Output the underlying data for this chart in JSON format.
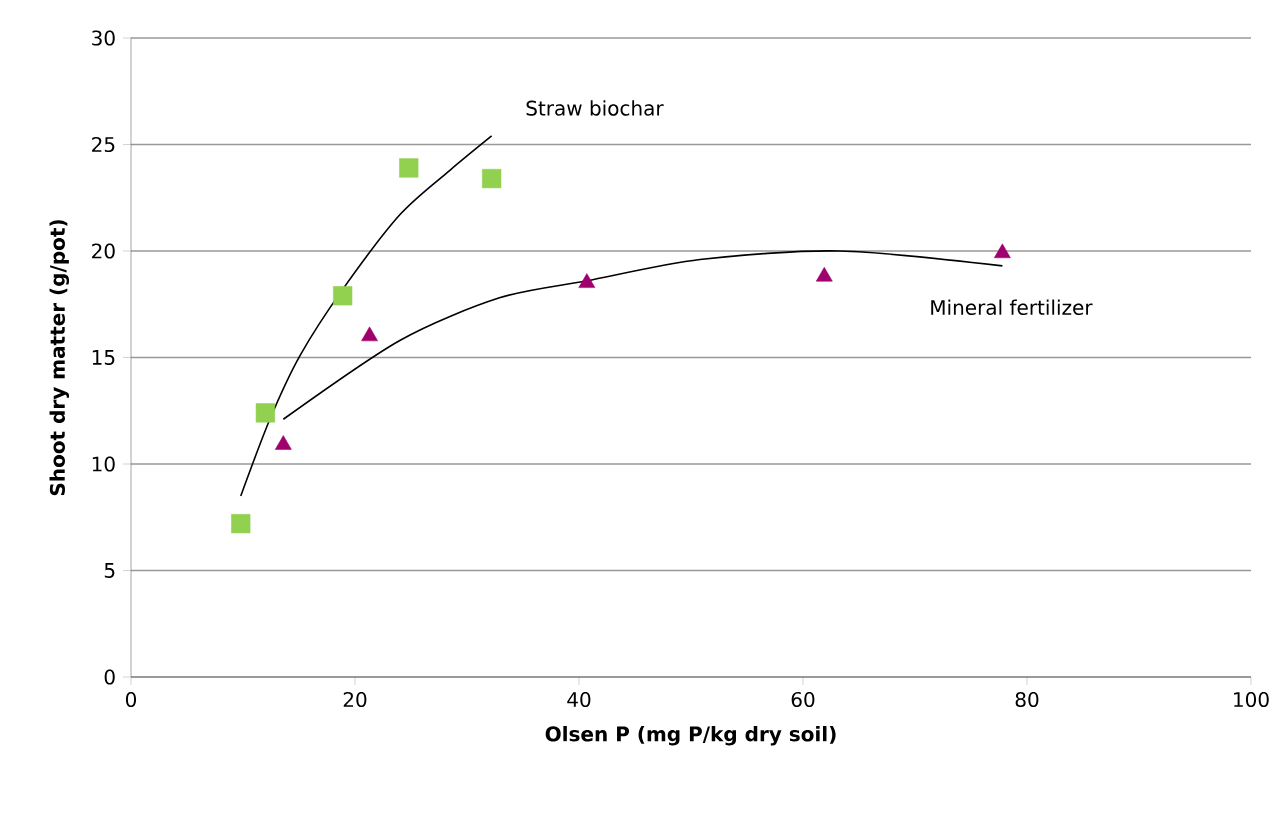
{
  "chart_data": {
    "type": "scatter",
    "xlabel": "Olsen P (mg P/kg dry soil)",
    "ylabel": "Shoot dry matter (g/pot)",
    "xlim": [
      0,
      100
    ],
    "ylim": [
      0,
      30
    ],
    "xticks": [
      0,
      20,
      40,
      60,
      80,
      100
    ],
    "yticks": [
      0,
      5,
      10,
      15,
      20,
      25,
      30
    ],
    "grid": "y",
    "series": [
      {
        "marker": "square",
        "color": "#92d050",
        "x": [
          9.8,
          12.0,
          18.9,
          24.8,
          32.2
        ],
        "values": [
          7.2,
          12.4,
          17.9,
          23.9,
          23.4
        ]
      },
      {
        "marker": "triangle",
        "color": "#a0006e",
        "x": [
          13.6,
          21.3,
          40.7,
          61.9,
          77.8
        ],
        "values": [
          10.9,
          16.0,
          18.5,
          18.8,
          19.9
        ]
      },
      {
        "type": "line",
        "marker": "none",
        "line_style": "solid",
        "color": "#000000",
        "x": [
          9.8,
          12.4,
          15.1,
          18.9,
          24.0,
          28.5,
          32.2
        ],
        "values": [
          8.5,
          12.1,
          15.1,
          18.2,
          21.7,
          23.8,
          25.4
        ]
      },
      {
        "type": "line",
        "marker": "none",
        "line_style": "solid",
        "color": "#000000",
        "x": [
          13.6,
          24.0,
          32.9,
          40.7,
          50.8,
          63.3,
          77.8
        ],
        "values": [
          12.1,
          15.8,
          17.8,
          18.6,
          19.6,
          20.0,
          19.3
        ]
      }
    ],
    "annotations": [
      "Straw biochar",
      "Mineral fertilizer"
    ]
  }
}
